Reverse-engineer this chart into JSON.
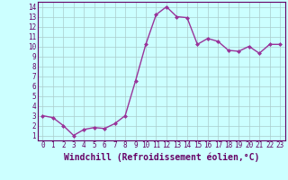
{
  "x": [
    0,
    1,
    2,
    3,
    4,
    5,
    6,
    7,
    8,
    9,
    10,
    11,
    12,
    13,
    14,
    15,
    16,
    17,
    18,
    19,
    20,
    21,
    22,
    23
  ],
  "y": [
    3.0,
    2.8,
    2.0,
    1.0,
    1.6,
    1.8,
    1.7,
    2.2,
    3.0,
    6.5,
    10.2,
    13.2,
    14.0,
    13.0,
    12.9,
    10.2,
    10.8,
    10.5,
    9.6,
    9.5,
    10.0,
    9.3,
    10.2,
    10.2
  ],
  "line_color": "#993399",
  "marker": "D",
  "marker_size": 2,
  "bg_color": "#ccffff",
  "grid_color": "#aacccc",
  "xlabel": "Windchill (Refroidissement éolien,°C)",
  "xlabel_fontsize": 7,
  "xlim": [
    -0.5,
    23.5
  ],
  "ylim": [
    0.5,
    14.5
  ],
  "yticks": [
    1,
    2,
    3,
    4,
    5,
    6,
    7,
    8,
    9,
    10,
    11,
    12,
    13,
    14
  ],
  "xticks": [
    0,
    1,
    2,
    3,
    4,
    5,
    6,
    7,
    8,
    9,
    10,
    11,
    12,
    13,
    14,
    15,
    16,
    17,
    18,
    19,
    20,
    21,
    22,
    23
  ],
  "tick_fontsize": 5.5,
  "spine_color": "#660066",
  "line_width": 1.0
}
